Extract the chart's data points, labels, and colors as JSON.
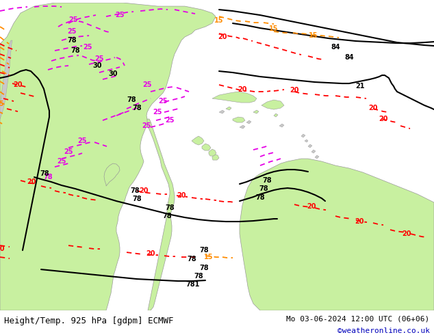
{
  "title_left": "Height/Temp. 925 hPa [gdpm] ECMWF",
  "title_right": "Mo 03-06-2024 12:00 UTC (06+06)",
  "credit": "©weatheronline.co.uk",
  "bg_color": "#ffffff",
  "sea_color": "#e8e8e8",
  "land_green": "#c8f0a0",
  "land_gray": "#c8c8c8",
  "bottom_bar_color": "#f0f0f0",
  "title_fontsize": 9,
  "credit_fontsize": 8,
  "fig_width": 6.34,
  "fig_height": 4.9,
  "dpi": 100,
  "contour_colors": {
    "height_black": "#000000",
    "temp_red": "#ff0000",
    "temp_magenta": "#e600e6",
    "temp_orange": "#ff8c00"
  }
}
